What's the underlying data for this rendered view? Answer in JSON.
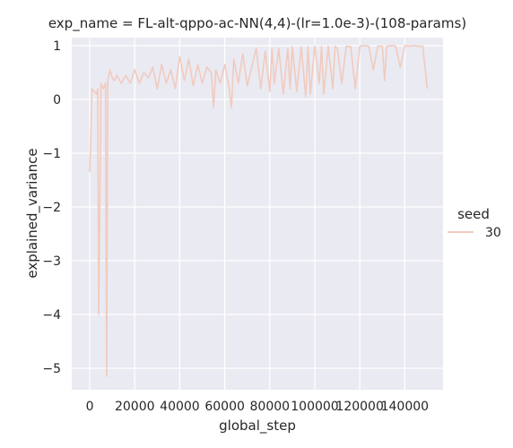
{
  "chart_data": {
    "type": "line",
    "title": "exp_name = FL-alt-qppo-ac-NN(4,4)-(lr=1.0e-3)-(108-params)",
    "xlabel": "global_step",
    "ylabel": "explained_variance",
    "xlim": [
      -8000,
      157000
    ],
    "ylim": [
      -5.4,
      1.15
    ],
    "x_ticks": [
      0,
      20000,
      40000,
      60000,
      80000,
      100000,
      120000,
      140000
    ],
    "x_tick_labels": [
      "0",
      "20000",
      "40000",
      "60000",
      "80000",
      "100000",
      "120000",
      "140000"
    ],
    "y_ticks": [
      1,
      0,
      -1,
      -2,
      -3,
      -4,
      -5
    ],
    "y_tick_labels": [
      "1",
      "0",
      "−1",
      "−2",
      "−3",
      "−4",
      "−5"
    ],
    "grid": true,
    "background": "#eaeaf2",
    "legend": {
      "title": "seed",
      "placement": "right",
      "entries": [
        "30"
      ]
    },
    "series": [
      {
        "name": "30",
        "color": "#f0cbbf",
        "x": [
          0,
          1000,
          2000,
          3000,
          3500,
          4000,
          5000,
          6000,
          7000,
          7500,
          8000,
          9000,
          10000,
          11000,
          12000,
          14000,
          16000,
          18000,
          20000,
          22000,
          24000,
          26000,
          28000,
          30000,
          32000,
          34000,
          36000,
          38000,
          40000,
          42000,
          44000,
          46000,
          48000,
          50000,
          52000,
          54000,
          55000,
          56000,
          58000,
          60000,
          62000,
          63000,
          64000,
          66000,
          68000,
          70000,
          72000,
          74000,
          76000,
          78000,
          80000,
          81000,
          82000,
          84000,
          86000,
          88000,
          89000,
          90000,
          92000,
          94000,
          96000,
          97000,
          98000,
          100000,
          102000,
          103000,
          104000,
          106000,
          108000,
          109000,
          110000,
          112000,
          114000,
          116000,
          118000,
          120000,
          122000,
          124000,
          126000,
          128000,
          130000,
          131000,
          132000,
          134000,
          136000,
          138000,
          140000,
          142000,
          144000,
          146000,
          148000,
          150000
        ],
        "y": [
          -1.35,
          0.2,
          0.15,
          0.1,
          0.2,
          -4.0,
          0.3,
          0.2,
          0.3,
          -5.15,
          0.35,
          0.55,
          0.4,
          0.35,
          0.45,
          0.3,
          0.45,
          0.3,
          0.55,
          0.3,
          0.5,
          0.4,
          0.6,
          0.2,
          0.65,
          0.3,
          0.55,
          0.2,
          0.8,
          0.35,
          0.75,
          0.25,
          0.65,
          0.3,
          0.6,
          0.5,
          -0.15,
          0.55,
          0.3,
          0.65,
          0.2,
          -0.15,
          0.75,
          0.3,
          0.85,
          0.25,
          0.6,
          0.95,
          0.2,
          0.9,
          0.15,
          0.95,
          0.3,
          0.95,
          0.1,
          0.95,
          0.2,
          0.98,
          0.15,
          0.98,
          0.05,
          0.98,
          0.1,
          0.99,
          0.3,
          0.99,
          0.1,
          0.99,
          0.2,
          0.99,
          0.95,
          0.3,
          0.99,
          0.98,
          0.2,
          0.99,
          1.0,
          0.99,
          0.55,
          0.99,
          0.99,
          0.35,
          0.99,
          1.0,
          0.99,
          0.6,
          1.0,
          0.99,
          1.0,
          0.99,
          0.99,
          0.2
        ]
      }
    ]
  }
}
